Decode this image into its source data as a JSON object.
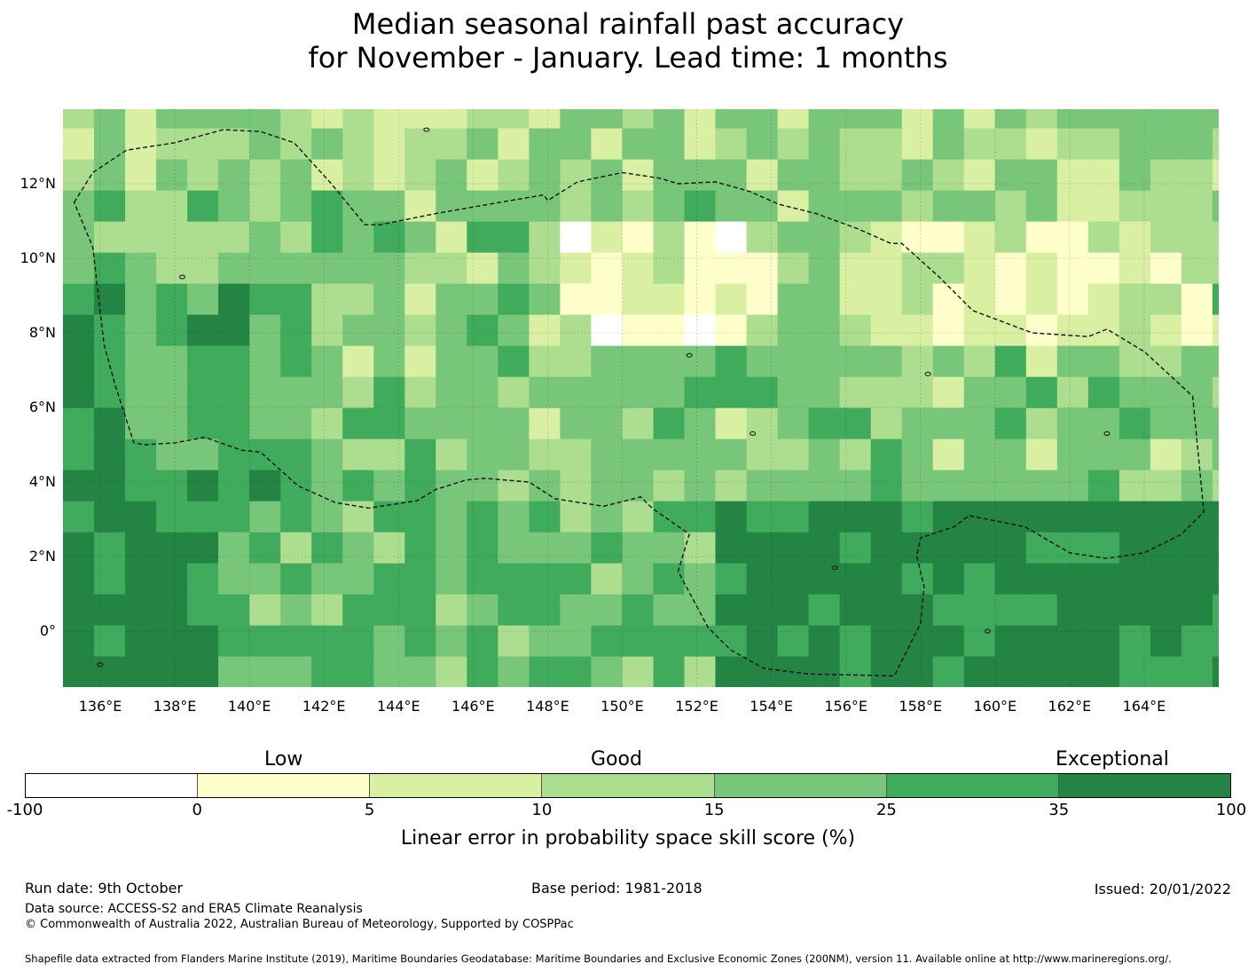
{
  "title": {
    "line1": "Median seasonal rainfall past accuracy",
    "line2": "for November - January. Lead time: 1 months"
  },
  "map": {
    "lon_range": [
      135,
      166
    ],
    "lat_range": [
      -1.5,
      14
    ],
    "lat_ticks": [
      {
        "value": 12,
        "label": "12°N"
      },
      {
        "value": 10,
        "label": "10°N"
      },
      {
        "value": 8,
        "label": "8°N"
      },
      {
        "value": 6,
        "label": "6°N"
      },
      {
        "value": 4,
        "label": "4°N"
      },
      {
        "value": 2,
        "label": "2°N"
      },
      {
        "value": 0,
        "label": "0°"
      }
    ],
    "lon_ticks": [
      {
        "value": 136,
        "label": "136°E"
      },
      {
        "value": 138,
        "label": "138°E"
      },
      {
        "value": 140,
        "label": "140°E"
      },
      {
        "value": 142,
        "label": "142°E"
      },
      {
        "value": 144,
        "label": "144°E"
      },
      {
        "value": 146,
        "label": "146°E"
      },
      {
        "value": 148,
        "label": "148°E"
      },
      {
        "value": 150,
        "label": "150°E"
      },
      {
        "value": 152,
        "label": "152°E"
      },
      {
        "value": 154,
        "label": "154°E"
      },
      {
        "value": 156,
        "label": "156°E"
      },
      {
        "value": 158,
        "label": "158°E"
      },
      {
        "value": 160,
        "label": "160°E"
      },
      {
        "value": 162,
        "label": "162°E"
      },
      {
        "value": 164,
        "label": "164°E"
      }
    ],
    "eez_western": [
      [
        135.3,
        11.5
      ],
      [
        135.8,
        12.3
      ],
      [
        136.7,
        12.9
      ],
      [
        138,
        13.1
      ],
      [
        139.3,
        13.45
      ],
      [
        140.3,
        13.4
      ],
      [
        141.2,
        13.1
      ],
      [
        142.2,
        12
      ],
      [
        143.1,
        10.9
      ],
      [
        143.5,
        10.9
      ],
      [
        145,
        11.2
      ],
      [
        147,
        11.55
      ],
      [
        147.9,
        11.7
      ],
      [
        148,
        11.55
      ],
      [
        148.8,
        12.05
      ],
      [
        150,
        12.3
      ],
      [
        151,
        12.15
      ],
      [
        151.5,
        12
      ],
      [
        152.5,
        12.05
      ],
      [
        153.4,
        11.8
      ],
      [
        154.2,
        11.45
      ],
      [
        155.2,
        11.2
      ],
      [
        156.3,
        10.8
      ],
      [
        157.2,
        10.4
      ],
      [
        157.5,
        10.4
      ],
      [
        158.5,
        9.5
      ],
      [
        159.4,
        8.6
      ],
      [
        161,
        8
      ],
      [
        162.5,
        7.9
      ],
      [
        163,
        8.1
      ],
      [
        164,
        7.5
      ],
      [
        165.3,
        6.3
      ],
      [
        165.6,
        3.2
      ],
      [
        165,
        2.6
      ],
      [
        164,
        2.1
      ],
      [
        163,
        1.95
      ],
      [
        162,
        2.1
      ],
      [
        160.8,
        2.8
      ],
      [
        159.3,
        3.1
      ],
      [
        158.9,
        2.8
      ],
      [
        158,
        2.5
      ],
      [
        157.9,
        2
      ],
      [
        158.1,
        1.2
      ],
      [
        158,
        0.2
      ],
      [
        157.3,
        -1.2
      ],
      [
        155,
        -1.15
      ],
      [
        153.8,
        -1.0
      ],
      [
        152.9,
        -0.5
      ],
      [
        152.3,
        0.1
      ],
      [
        151.5,
        1.6
      ],
      [
        151.8,
        2.6
      ],
      [
        150.8,
        3.3
      ],
      [
        150.5,
        3.6
      ],
      [
        149.5,
        3.35
      ],
      [
        148.2,
        3.55
      ],
      [
        147.5,
        4.0
      ],
      [
        146.9,
        4.05
      ],
      [
        146.3,
        4.1
      ],
      [
        145.8,
        4.05
      ],
      [
        145,
        3.8
      ],
      [
        144.5,
        3.5
      ],
      [
        143.2,
        3.3
      ],
      [
        142.3,
        3.45
      ],
      [
        141.3,
        3.9
      ],
      [
        140.3,
        4.8
      ],
      [
        139.8,
        4.85
      ],
      [
        138.8,
        5.2
      ],
      [
        138,
        5.05
      ],
      [
        137.2,
        5.0
      ],
      [
        136.9,
        5.05
      ],
      [
        136.4,
        6.6
      ],
      [
        136.1,
        7.7
      ],
      [
        135.8,
        10.3
      ],
      [
        135.3,
        11.5
      ]
    ]
  },
  "colorbar": {
    "ticks": [
      "-100",
      "0",
      "5",
      "10",
      "15",
      "25",
      "35",
      "100"
    ],
    "colors": [
      "#ffffff",
      "#ffffcc",
      "#d9f0a3",
      "#addd8e",
      "#78c679",
      "#41ab5d",
      "#238443"
    ],
    "categories": {
      "low": "Low",
      "good": "Good",
      "exceptional": "Exceptional"
    },
    "label": "Linear error in probability space skill score (%)"
  },
  "footer": {
    "run_date": "Run date: 9th October",
    "base_period": "Base period: 1981-2018",
    "issued": "Issued: 20/01/2022",
    "data_source": "Data source: ACCESS-S2 and ERA5 Climate Reanalysis",
    "copyright": "© Commonwealth of Australia 2022, Australian Bureau of Meteorology, Supported by COSPPac",
    "shapefile": "Shapefile data extracted from Flanders Marine Institute (2019), Maritime Boundaries Geodatabase: Maritime Boundaries and Exclusive Economic Zones (200NM), version 11. Available online at http://www.marineregions.org/."
  }
}
